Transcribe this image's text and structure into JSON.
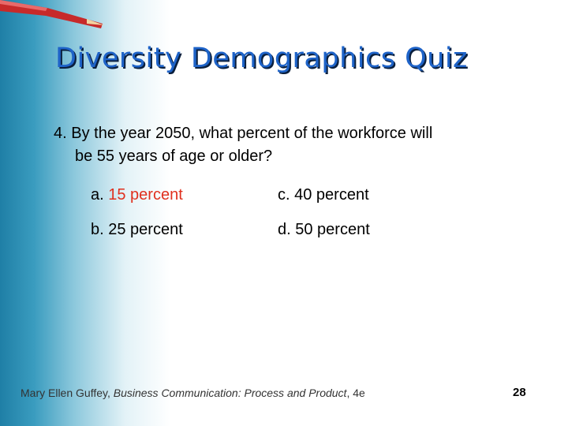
{
  "slide": {
    "title": "Diversity Demographics Quiz",
    "question": {
      "number": "4.",
      "line1": "By the year 2050, what percent of the workforce will",
      "line2": "be 55 years of age or older?"
    },
    "options": [
      {
        "letter": "a.",
        "text": "15 percent"
      },
      {
        "letter": "c.",
        "text": "40 percent"
      },
      {
        "letter": "b.",
        "text": "25 percent"
      },
      {
        "letter": "d.",
        "text": "50 percent"
      }
    ],
    "footer": {
      "author": "Mary Ellen Guffey, ",
      "book": "Business Communication: Process and Product",
      "edition": ", 4e"
    },
    "page_number": "28"
  }
}
